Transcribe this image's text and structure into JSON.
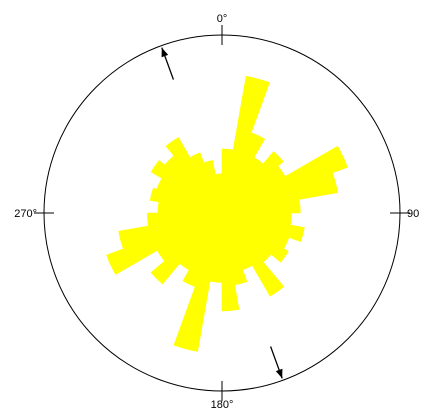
{
  "chart_data": {
    "type": "rose",
    "title": "",
    "bin_width_deg": 10,
    "fill_color": "#ffff00",
    "axis_color": "#000000",
    "tick_labels": [
      {
        "angle": 0,
        "text": "0°"
      },
      {
        "angle": 90,
        "text": "90"
      },
      {
        "angle": 180,
        "text": "180°"
      },
      {
        "angle": 270,
        "text": "270°"
      }
    ],
    "arrows": [
      {
        "angle": 340
      },
      {
        "angle": 160
      }
    ],
    "bins": [
      {
        "start": 0,
        "value": 0.36
      },
      {
        "start": 10,
        "value": 0.78
      },
      {
        "start": 20,
        "value": 0.48
      },
      {
        "start": 30,
        "value": 0.36
      },
      {
        "start": 40,
        "value": 0.45
      },
      {
        "start": 50,
        "value": 0.41
      },
      {
        "start": 60,
        "value": 0.75
      },
      {
        "start": 70,
        "value": 0.66
      },
      {
        "start": 80,
        "value": 0.44
      },
      {
        "start": 90,
        "value": 0.39
      },
      {
        "start": 100,
        "value": 0.47
      },
      {
        "start": 110,
        "value": 0.4
      },
      {
        "start": 120,
        "value": 0.43
      },
      {
        "start": 130,
        "value": 0.36
      },
      {
        "start": 140,
        "value": 0.54
      },
      {
        "start": 150,
        "value": 0.34
      },
      {
        "start": 160,
        "value": 0.41
      },
      {
        "start": 170,
        "value": 0.55
      },
      {
        "start": 180,
        "value": 0.39
      },
      {
        "start": 190,
        "value": 0.79
      },
      {
        "start": 200,
        "value": 0.44
      },
      {
        "start": 210,
        "value": 0.37
      },
      {
        "start": 220,
        "value": 0.52
      },
      {
        "start": 230,
        "value": 0.42
      },
      {
        "start": 240,
        "value": 0.69
      },
      {
        "start": 250,
        "value": 0.59
      },
      {
        "start": 260,
        "value": 0.42
      },
      {
        "start": 270,
        "value": 0.36
      },
      {
        "start": 280,
        "value": 0.41
      },
      {
        "start": 290,
        "value": 0.39
      },
      {
        "start": 300,
        "value": 0.46
      },
      {
        "start": 310,
        "value": 0.42
      },
      {
        "start": 320,
        "value": 0.49
      },
      {
        "start": 330,
        "value": 0.36
      },
      {
        "start": 340,
        "value": 0.3
      },
      {
        "start": 350,
        "value": 0.22
      }
    ]
  }
}
